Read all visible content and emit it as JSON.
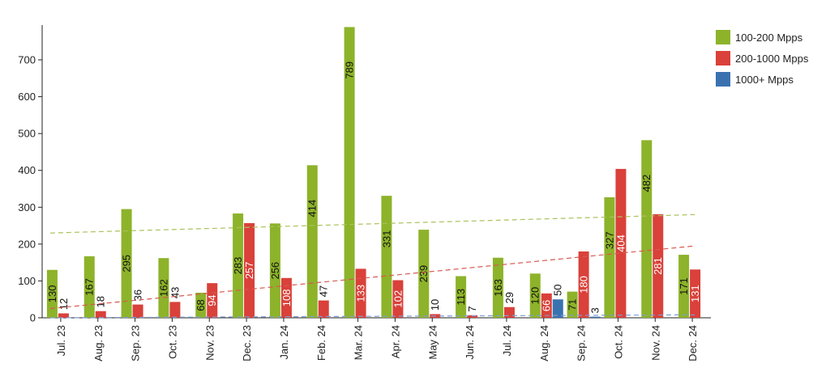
{
  "chart_data": {
    "type": "bar",
    "categories": [
      "Jul. 23",
      "Aug. 23",
      "Sep. 23",
      "Oct. 23",
      "Nov. 23",
      "Dec. 23",
      "Jan. 24",
      "Feb. 24",
      "Mar. 24",
      "Apr. 24",
      "May 24",
      "Jun. 24",
      "Jul. 24",
      "Aug. 24",
      "Sep. 24",
      "Oct. 24",
      "Nov. 24",
      "Dec. 24"
    ],
    "series": [
      {
        "name": "100-200 Mpps",
        "color": "#8db32a",
        "values": [
          130,
          167,
          295,
          162,
          68,
          283,
          256,
          414,
          789,
          331,
          239,
          113,
          163,
          120,
          71,
          327,
          482,
          171
        ]
      },
      {
        "name": "200-1000 Mpps",
        "color": "#d9413a",
        "values": [
          12,
          18,
          36,
          43,
          94,
          257,
          108,
          47,
          133,
          102,
          10,
          7,
          29,
          66,
          180,
          404,
          281,
          131
        ]
      },
      {
        "name": "1000+ Mpps",
        "color": "#3a72b0",
        "values": [
          0,
          0,
          0,
          0,
          0,
          0,
          0,
          0,
          0,
          0,
          0,
          0,
          0,
          50,
          3,
          0,
          0,
          0
        ]
      }
    ],
    "data_labels": [
      {
        "series": 0,
        "values": [
          "130",
          "167",
          "295",
          "162",
          "68",
          "283",
          "256",
          "414",
          "789",
          "331",
          "239",
          "113",
          "163",
          "120",
          "71",
          "327",
          "482",
          "171"
        ]
      },
      {
        "series": 1,
        "values": [
          "12",
          "18",
          "36",
          "43",
          "94",
          "257",
          "108",
          "47",
          "133",
          "102",
          "10",
          "7",
          "29",
          "66",
          "180",
          "404",
          "281",
          "131"
        ]
      },
      {
        "series": 2,
        "values": [
          "",
          "",
          "",
          "",
          "",
          "",
          "",
          "",
          "",
          "",
          "",
          "",
          "",
          "50",
          "3",
          "",
          "",
          ""
        ]
      }
    ],
    "yticks": [
      "0",
      "100",
      "200",
      "300",
      "400",
      "500",
      "600",
      "700"
    ],
    "ylim": [
      0,
      790
    ],
    "trendlines": [
      {
        "series": 0,
        "style": "dashed",
        "start": 230,
        "end": 280
      },
      {
        "series": 1,
        "style": "dashed",
        "start": 25,
        "end": 195
      },
      {
        "series": 2,
        "style": "dashed",
        "start": 0,
        "end": 8
      }
    ],
    "legend_position": "top-right",
    "grid": false,
    "xlabel": "",
    "ylabel": "",
    "title": ""
  }
}
